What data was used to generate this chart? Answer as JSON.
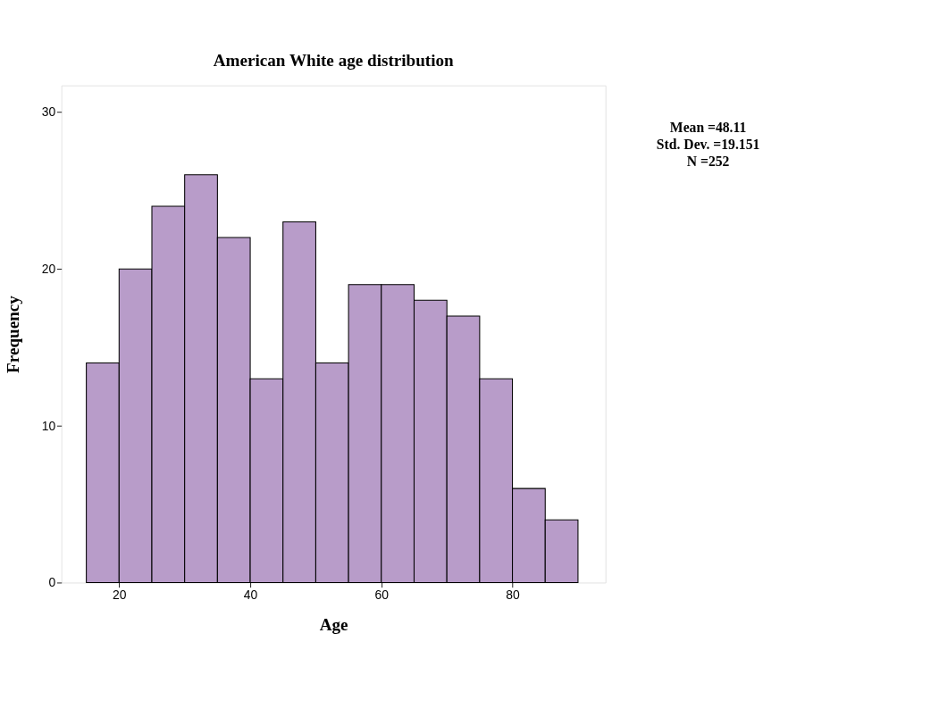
{
  "chart_data": {
    "type": "histogram",
    "title": "American White age distribution",
    "xlabel": "Age",
    "ylabel": "Frequency",
    "bins": [
      15,
      20,
      25,
      30,
      35,
      40,
      45,
      50,
      55,
      60,
      65,
      70,
      75,
      80,
      85,
      90
    ],
    "values": [
      14,
      20,
      24,
      26,
      22,
      13,
      23,
      14,
      19,
      19,
      18,
      17,
      13,
      6,
      4
    ],
    "color": "#b89cc9",
    "xlim": [
      11.2,
      94.2
    ],
    "xticks": [
      20,
      40,
      60,
      80
    ],
    "ylim": [
      0,
      31.7
    ],
    "yticks": [
      0,
      10,
      20,
      30
    ],
    "grid": false,
    "annotations": [
      "Mean =48.11",
      "Std. Dev. =19.151",
      "N =252"
    ]
  }
}
